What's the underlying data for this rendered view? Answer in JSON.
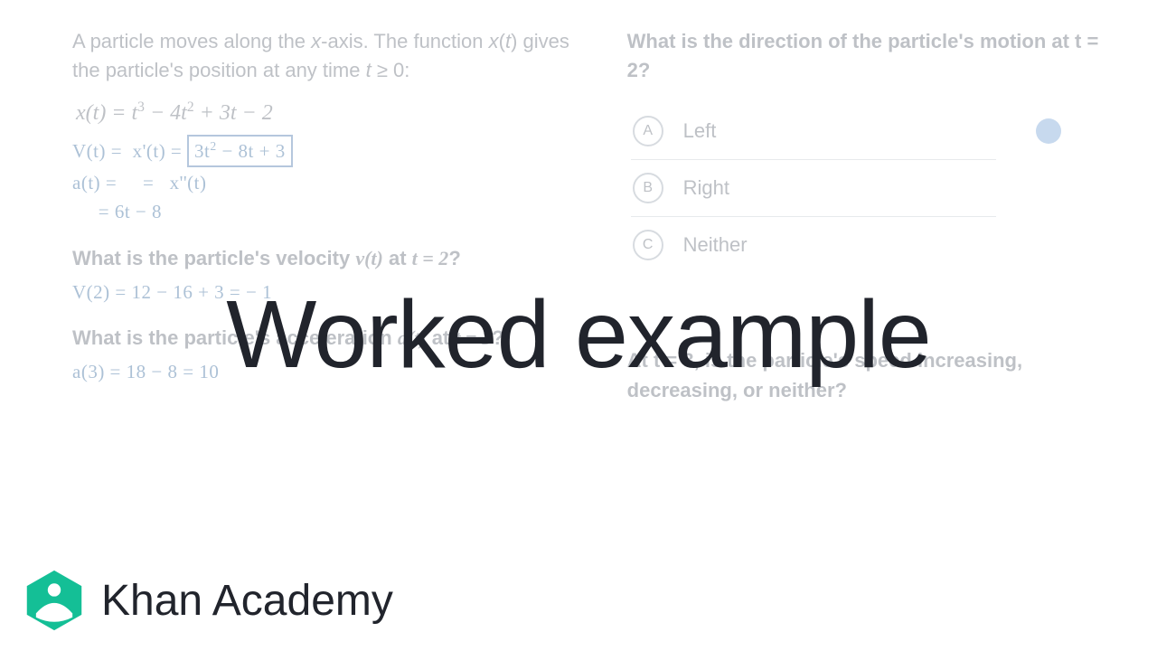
{
  "colors": {
    "faded_text": "#8a8f98",
    "handwriting": "#6a8fb5",
    "title": "#21242c",
    "brand_green": "#14bf96",
    "brand_leaf": "#ffffff",
    "dot": "#99b9e0",
    "divider": "#d5d9dd",
    "background": "#ffffff"
  },
  "overlay": {
    "title": "Worked example",
    "brand": "Khan Academy"
  },
  "left": {
    "intro_html": "A particle moves along the <i>x</i>-axis. The function <i>x</i>(<i>t</i>) gives the particle's position at any time <i>t</i> ≥ 0:",
    "formula_html": "x(t) = t<sup>3</sup> − 4t<sup>2</sup> + 3t − 2",
    "hand1_html": "V(t) = &nbsp;x'(t) = <span class=\"boxed\">3t<sup>2</sup> − 8t + 3</span>",
    "hand2_html": "a(t) = &nbsp; &nbsp; = &nbsp; x''(t)",
    "hand3_html": "&nbsp;&nbsp;&nbsp;&nbsp; = 6t − 8",
    "q1_html": "What is the particle's velocity <span class=\"math\">v(t)</span> at <span class=\"math\">t = 2</span>?",
    "hand_v2": "V(2) = 12 − 16 + 3 = − 1",
    "q2_html": "What is the particle's acceleration <span class=\"math\">a(t)</span> at <span class=\"math\">t = 3</span>?",
    "hand_a3": "a(3) = 18 − 8 = 10"
  },
  "right": {
    "q_direction_html": "What is the direction of the particle's motion at <span class=\"math\">t = 2</span>?",
    "choices": [
      {
        "letter": "A",
        "label": "Left"
      },
      {
        "letter": "B",
        "label": "Right"
      },
      {
        "letter": "C",
        "label": "Neither"
      }
    ],
    "q_speed_html": "At <span class=\"math\">t = 3</span>, is the particle's speed increasing, decreasing, or neither?"
  }
}
